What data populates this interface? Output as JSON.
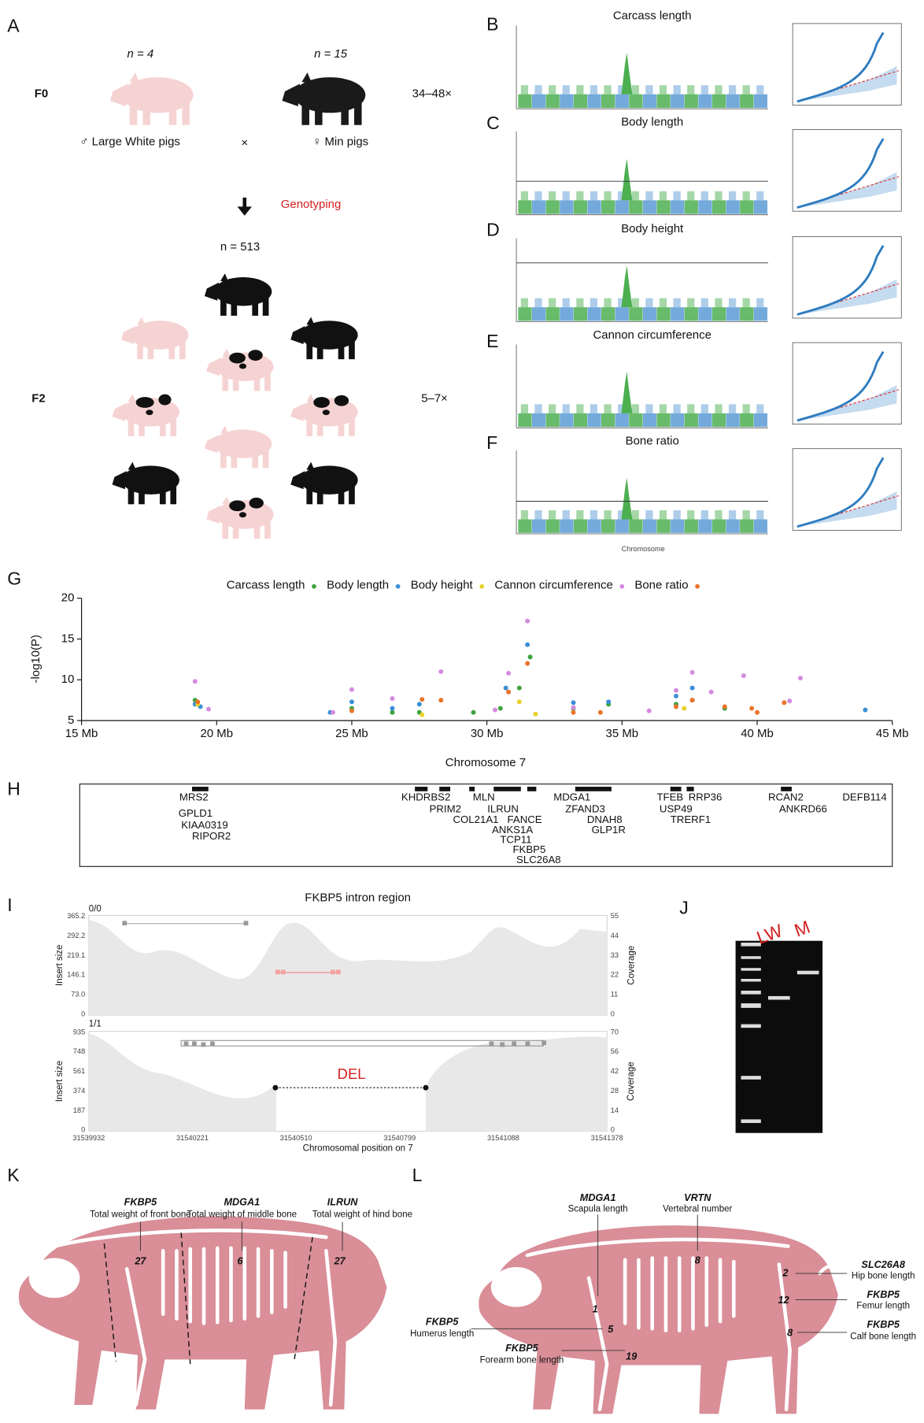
{
  "panel_labels": {
    "a": "A",
    "b": "B",
    "c": "C",
    "d": "D",
    "e": "E",
    "f": "F",
    "g": "G",
    "h": "H",
    "i": "I",
    "j": "J",
    "k": "K",
    "l": "L"
  },
  "panel_a": {
    "n_lw": "n = 4",
    "n_min": "n = 15",
    "f0": "F0",
    "f0_depth": "34–48×",
    "lw": "♂ Large White pigs",
    "cross": "×",
    "min": "♀ Min pigs",
    "genotyping": "Genotyping",
    "n_f2": "n = 513",
    "f2": "F2",
    "f2_depth": "5–7×"
  },
  "panels_bf": {
    "titles": [
      "Carcass length",
      "Body length",
      "Body height",
      "Cannon circumference",
      "Bone ratio"
    ],
    "x_label": "Chromosome"
  },
  "chart_data": {
    "type": "scatter",
    "x_label": "Chromosome 7",
    "y_label": "-log10(P)",
    "xlim": [
      15,
      45
    ],
    "xticks": [
      {
        "value": 15,
        "label": "15 Mb"
      },
      {
        "value": 20,
        "label": "20 Mb"
      },
      {
        "value": 25,
        "label": "25 Mb"
      },
      {
        "value": 30,
        "label": "30 Mb"
      },
      {
        "value": 35,
        "label": "35 Mb"
      },
      {
        "value": 40,
        "label": "40 Mb"
      },
      {
        "value": 45,
        "label": "45 Mb"
      }
    ],
    "ylim": [
      5,
      20
    ],
    "yticks": [
      5,
      10,
      15,
      20
    ],
    "series": [
      {
        "name": "Carcass length",
        "color": "#3ea33e",
        "x": [
          19.2,
          25,
          26.5,
          27.5,
          29.5,
          30.5,
          31.2,
          31.6,
          33.2,
          34.5,
          37,
          37.6,
          38.8
        ],
        "values": [
          7.5,
          6.5,
          6,
          6,
          6,
          6.5,
          9,
          12.8,
          6.5,
          7,
          7,
          7.5,
          6.5
        ]
      },
      {
        "name": "Body length",
        "color": "#3b8fd6",
        "x": [
          19.2,
          19.4,
          24.2,
          25,
          26.5,
          27.5,
          30.7,
          31.5,
          33.2,
          34.5,
          37,
          37.6,
          44
        ],
        "values": [
          7,
          6.7,
          6,
          7.3,
          6.5,
          7,
          9,
          14.3,
          7.2,
          7.3,
          8,
          9,
          6.3
        ]
      },
      {
        "name": "Body height",
        "color": "#e8d12a",
        "x": [
          19.3,
          27.6,
          31.2,
          31.8,
          37.3
        ],
        "values": [
          7,
          5.7,
          7.3,
          5.8,
          6.5
        ]
      },
      {
        "name": "Cannon circumference",
        "color": "#d58ae0",
        "x": [
          19.2,
          19.7,
          24.3,
          25,
          26.5,
          28.3,
          30.3,
          30.8,
          31.5,
          33.2,
          36,
          37,
          37.6,
          38.3,
          39.5,
          41.2,
          41.6
        ],
        "values": [
          9.8,
          6.4,
          6,
          8.8,
          7.7,
          11,
          6.3,
          10.8,
          17.2,
          6.6,
          6.2,
          8.7,
          10.9,
          8.5,
          10.5,
          7.4,
          10.2
        ]
      },
      {
        "name": "Bone ratio",
        "color": "#e8742a",
        "x": [
          19.3,
          25,
          27.6,
          28.3,
          30.8,
          31.5,
          33.2,
          34.2,
          37,
          37.6,
          38.8,
          40,
          41,
          39.8
        ],
        "values": [
          7.3,
          6.2,
          7.6,
          7.5,
          8.5,
          12,
          6,
          6,
          6.7,
          7.5,
          6.7,
          6,
          7.2,
          6.5
        ]
      }
    ]
  },
  "panel_h": {
    "genes": [
      "MRS2",
      "GPLD1",
      "KIAA0319",
      "RIPOR2",
      "KHDRBS2",
      "PRIM2",
      "MLN",
      "ILRUN",
      "COL21A1",
      "FANCE",
      "ANKS1A",
      "TCP11",
      "FKBP5",
      "SLC26A8",
      "MDGA1",
      "ZFAND3",
      "DNAH8",
      "GLP1R",
      "TFEB",
      "RRP36",
      "USP49",
      "TRERF1",
      "RCAN2",
      "ANKRD66",
      "DEFB114"
    ]
  },
  "panel_i": {
    "title": "FKBP5 intron region",
    "top_label": "0/0",
    "bottom_label": "1/1",
    "del": "DEL",
    "y_label": "Insert size",
    "y2_label": "Coverage",
    "x_label": "Chromosomal position on 7",
    "top_yticks": [
      "0",
      "73.0",
      "146.1",
      "219.1",
      "292.2",
      "365.2"
    ],
    "top_y2ticks": [
      "0",
      "11",
      "22",
      "33",
      "44",
      "55"
    ],
    "bottom_yticks": [
      "0",
      "187",
      "374",
      "561",
      "748",
      "935"
    ],
    "bottom_y2ticks": [
      "0",
      "14",
      "28",
      "42",
      "56",
      "70"
    ],
    "xticks": [
      "31539932",
      "31540221",
      "31540510",
      "31540799",
      "31541088",
      "31541378"
    ]
  },
  "panel_j": {
    "lanes": [
      "LW",
      "M"
    ]
  },
  "panel_k": {
    "annotations": [
      {
        "gene": "FKBP5",
        "trait": "Total weight of front bone",
        "count": 27
      },
      {
        "gene": "MDGA1",
        "trait": "Total weight of middle bone",
        "count": 6
      },
      {
        "gene": "ILRUN",
        "trait": "Total weight of hind bone",
        "count": 27
      }
    ]
  },
  "panel_l": {
    "annotations": [
      {
        "gene": "MDGA1",
        "trait": "Scapula length",
        "count": 1
      },
      {
        "gene": "VRTN",
        "trait": "Vertebral number",
        "count": 8
      },
      {
        "gene": "SLC26A8",
        "trait": "Hip bone length",
        "count": 2
      },
      {
        "gene": "FKBP5",
        "trait": "Femur length",
        "count": 12
      },
      {
        "gene": "FKBP5",
        "trait": "Calf bone length",
        "count": 8
      },
      {
        "gene": "FKBP5",
        "trait": "Humerus length",
        "count": 5
      },
      {
        "gene": "FKBP5",
        "trait": "Forearm bone length",
        "count": 19
      }
    ]
  }
}
